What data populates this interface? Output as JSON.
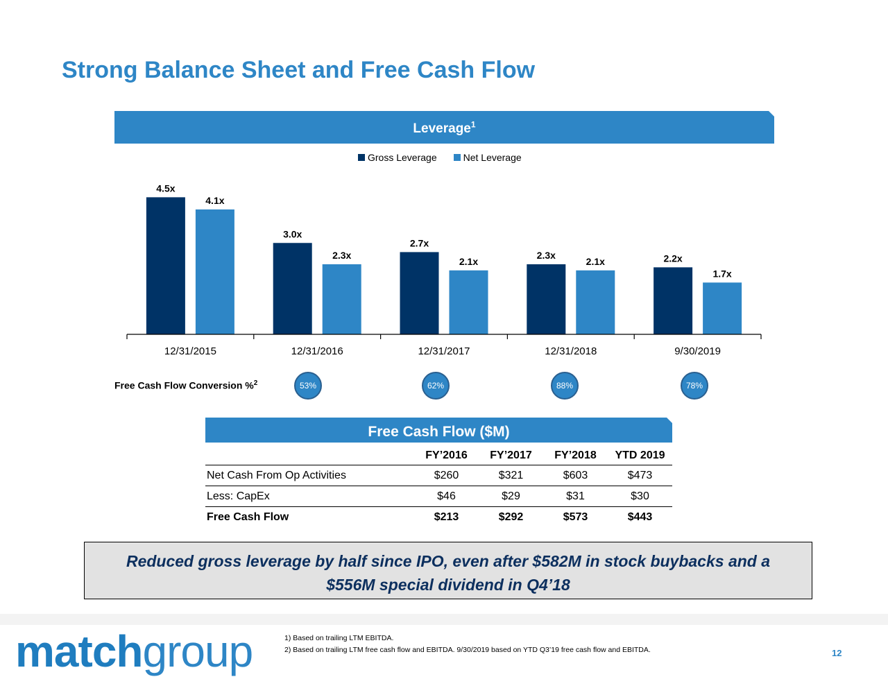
{
  "title": "Strong Balance Sheet and Free Cash Flow",
  "leverage_banner": {
    "label": "Leverage",
    "sup": "1"
  },
  "colors": {
    "accent": "#2e86c6",
    "gross": "#003366",
    "net": "#2e86c6",
    "callout_text": "#0c2f5e"
  },
  "chart_data": {
    "type": "bar",
    "title": "Leverage",
    "categories": [
      "12/31/2015",
      "12/31/2016",
      "12/31/2017",
      "12/31/2018",
      "9/30/2019"
    ],
    "series": [
      {
        "name": "Gross Leverage",
        "values": [
          4.5,
          3.0,
          2.7,
          2.3,
          2.2
        ],
        "labels": [
          "4.5x",
          "3.0x",
          "2.7x",
          "2.3x",
          "2.2x"
        ]
      },
      {
        "name": "Net Leverage",
        "values": [
          4.1,
          2.3,
          2.1,
          2.1,
          1.7
        ],
        "labels": [
          "4.1x",
          "2.3x",
          "2.1x",
          "2.1x",
          "1.7x"
        ]
      }
    ],
    "ylim": [
      0,
      4.6
    ],
    "legend": "top-center",
    "grid": false
  },
  "fcf_conversion": {
    "label": "Free Cash Flow Conversion %",
    "sup": "2",
    "values": [
      "53%",
      "62%",
      "88%",
      "78%"
    ]
  },
  "fcf_table": {
    "banner": "Free Cash Flow ($M)",
    "headers": [
      "FY’2016",
      "FY’2017",
      "FY’2018",
      "YTD 2019"
    ],
    "rows": [
      {
        "label": "Net Cash From Op Activities",
        "values": [
          "$260",
          "$321",
          "$603",
          "$473"
        ]
      },
      {
        "label": "Less: CapEx",
        "values": [
          "$46",
          "$29",
          "$31",
          "$30"
        ]
      },
      {
        "label": "Free Cash Flow",
        "values": [
          "$213",
          "$292",
          "$573",
          "$443"
        ]
      }
    ]
  },
  "callout": {
    "line1": "Reduced gross leverage by half since IPO, even after $582M in stock buybacks and a",
    "line2": "$556M special dividend in Q4’18"
  },
  "logo": {
    "strong": "match",
    "light": "group"
  },
  "footnotes": [
    "1) Based on trailing LTM EBITDA.",
    "2) Based on trailing LTM free cash flow and EBITDA. 9/30/2019 based on YTD Q3’19 free cash flow and EBITDA."
  ],
  "page_number": "12"
}
